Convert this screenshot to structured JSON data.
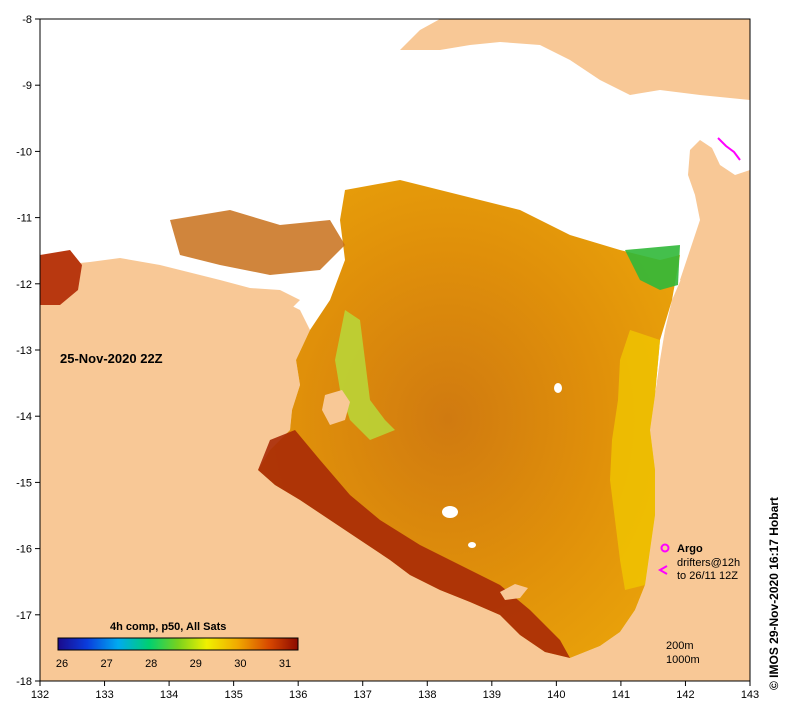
{
  "map": {
    "date_label": "25-Nov-2020 22Z",
    "credit": "© IMOS 29-Nov-2020 16:17 Hobart",
    "x_ticks": [
      "132",
      "133",
      "134",
      "135",
      "136",
      "137",
      "138",
      "139",
      "140",
      "141",
      "142",
      "143"
    ],
    "y_ticks": [
      "-8",
      "-9",
      "-10",
      "-11",
      "-12",
      "-13",
      "-14",
      "-15",
      "-16",
      "-17",
      "-18"
    ]
  },
  "colorbar": {
    "title": "4h comp, p50, All Sats",
    "ticks": [
      "26",
      "27",
      "28",
      "29",
      "30",
      "31"
    ]
  },
  "legend": {
    "argo": "Argo",
    "drifters_line1": "drifters@12h",
    "drifters_line2": "to 26/11 12Z",
    "depth_200": "200m",
    "depth_1000": "1000m"
  },
  "colors": {
    "land": "#f8c896",
    "warm": "#e08c00",
    "hot": "#8b1a00",
    "cool": "#8ccd2a",
    "argo": "#ff00ff"
  }
}
